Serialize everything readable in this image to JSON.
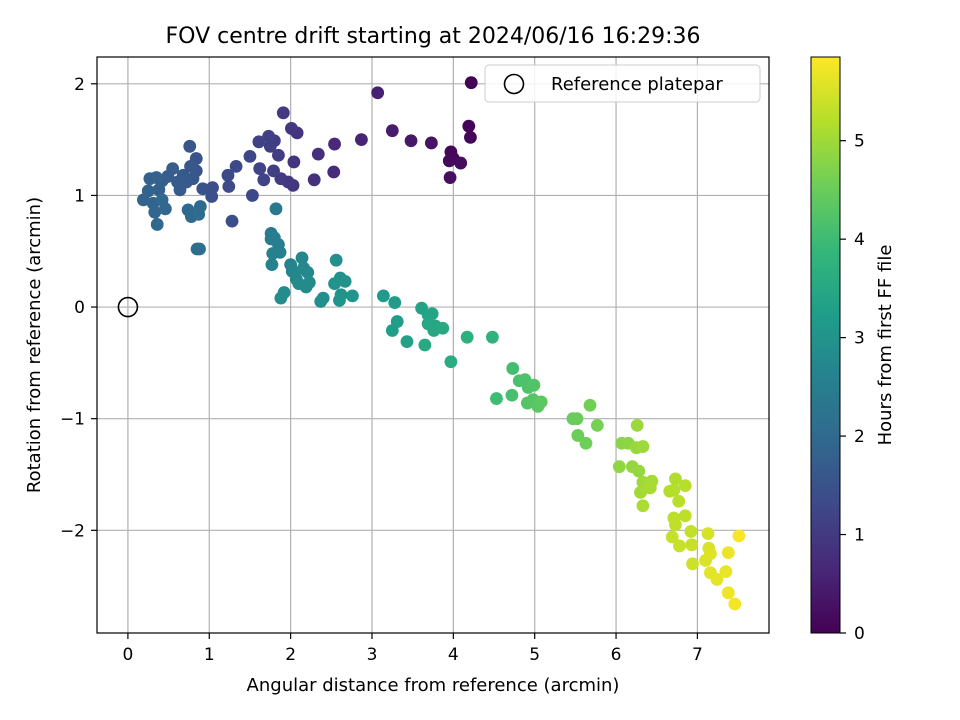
{
  "chart_data": {
    "type": "scatter",
    "title": "FOV centre drift starting at 2024/06/16 16:29:36",
    "xlabel": "Angular distance from reference (arcmin)",
    "ylabel": "Rotation from reference (arcmin)",
    "xlim": [
      -0.38,
      7.88
    ],
    "ylim": [
      -2.92,
      2.24
    ],
    "xticks": [
      0,
      1,
      2,
      3,
      4,
      5,
      6,
      7
    ],
    "xtick_labels": [
      "0",
      "1",
      "2",
      "3",
      "4",
      "5",
      "6",
      "7"
    ],
    "yticks": [
      -2,
      -1,
      0,
      1,
      2
    ],
    "ytick_labels": [
      "−2",
      "−1",
      "0",
      "1",
      "2"
    ],
    "grid": true,
    "legend": {
      "placement": "top-right",
      "label": "Reference platepar"
    },
    "reference_point": {
      "x": 0,
      "y": 0
    },
    "colorbar": {
      "label": "Hours from first FF file",
      "colormap": "viridis",
      "range": [
        0,
        5.85
      ],
      "ticks": [
        0,
        1,
        2,
        3,
        4,
        5
      ],
      "tick_labels": [
        "0",
        "1",
        "2",
        "3",
        "4",
        "5"
      ],
      "stops": [
        "#440154",
        "#482878",
        "#3e4989",
        "#31688e",
        "#26828e",
        "#1f9e89",
        "#35b779",
        "#6ece58",
        "#b5de2b",
        "#fde725"
      ]
    },
    "points": [
      {
        "x": 4.22,
        "y": 2.01,
        "t": 0.02
      },
      {
        "x": 4.19,
        "y": 1.62,
        "t": 0.05
      },
      {
        "x": 4.21,
        "y": 1.52,
        "t": 0.08
      },
      {
        "x": 3.97,
        "y": 1.39,
        "t": 0.1
      },
      {
        "x": 4.0,
        "y": 1.33,
        "t": 0.12
      },
      {
        "x": 3.95,
        "y": 1.31,
        "t": 0.15
      },
      {
        "x": 4.09,
        "y": 1.29,
        "t": 0.18
      },
      {
        "x": 3.96,
        "y": 1.16,
        "t": 0.22
      },
      {
        "x": 3.73,
        "y": 1.47,
        "t": 0.3
      },
      {
        "x": 3.48,
        "y": 1.49,
        "t": 0.38
      },
      {
        "x": 3.25,
        "y": 1.58,
        "t": 0.45
      },
      {
        "x": 3.07,
        "y": 1.92,
        "t": 0.52
      },
      {
        "x": 2.87,
        "y": 1.5,
        "t": 0.58
      },
      {
        "x": 2.54,
        "y": 1.46,
        "t": 0.68
      },
      {
        "x": 2.53,
        "y": 1.21,
        "t": 0.72
      },
      {
        "x": 2.34,
        "y": 1.37,
        "t": 0.78
      },
      {
        "x": 2.29,
        "y": 1.14,
        "t": 0.82
      },
      {
        "x": 2.08,
        "y": 1.56,
        "t": 0.88
      },
      {
        "x": 2.04,
        "y": 1.3,
        "t": 0.9
      },
      {
        "x": 2.03,
        "y": 1.09,
        "t": 0.92
      },
      {
        "x": 2.01,
        "y": 1.6,
        "t": 0.95
      },
      {
        "x": 1.97,
        "y": 1.12,
        "t": 0.97
      },
      {
        "x": 1.91,
        "y": 1.74,
        "t": 1.0
      },
      {
        "x": 1.88,
        "y": 1.15,
        "t": 1.02
      },
      {
        "x": 1.85,
        "y": 1.36,
        "t": 1.05
      },
      {
        "x": 1.8,
        "y": 1.49,
        "t": 1.07
      },
      {
        "x": 1.79,
        "y": 1.22,
        "t": 1.09
      },
      {
        "x": 1.75,
        "y": 1.44,
        "t": 1.11
      },
      {
        "x": 1.73,
        "y": 1.53,
        "t": 1.13
      },
      {
        "x": 1.61,
        "y": 1.48,
        "t": 1.16
      },
      {
        "x": 1.62,
        "y": 1.24,
        "t": 1.18
      },
      {
        "x": 1.67,
        "y": 1.14,
        "t": 1.2
      },
      {
        "x": 1.5,
        "y": 1.35,
        "t": 1.24
      },
      {
        "x": 1.53,
        "y": 1.0,
        "t": 1.27
      },
      {
        "x": 1.33,
        "y": 1.26,
        "t": 1.3
      },
      {
        "x": 1.23,
        "y": 1.18,
        "t": 1.33
      },
      {
        "x": 1.24,
        "y": 1.08,
        "t": 1.36
      },
      {
        "x": 1.28,
        "y": 0.77,
        "t": 1.39
      },
      {
        "x": 1.04,
        "y": 1.07,
        "t": 1.42
      },
      {
        "x": 1.03,
        "y": 0.99,
        "t": 1.45
      },
      {
        "x": 0.92,
        "y": 1.06,
        "t": 1.48
      },
      {
        "x": 0.84,
        "y": 1.33,
        "t": 1.51
      },
      {
        "x": 0.84,
        "y": 1.22,
        "t": 1.54
      },
      {
        "x": 0.76,
        "y": 1.44,
        "t": 1.57
      },
      {
        "x": 0.77,
        "y": 1.26,
        "t": 1.6
      },
      {
        "x": 0.8,
        "y": 1.15,
        "t": 1.62
      },
      {
        "x": 0.72,
        "y": 1.12,
        "t": 1.64
      },
      {
        "x": 0.68,
        "y": 1.18,
        "t": 1.66
      },
      {
        "x": 0.64,
        "y": 1.05,
        "t": 1.68
      },
      {
        "x": 0.61,
        "y": 1.12,
        "t": 1.7
      },
      {
        "x": 0.55,
        "y": 1.24,
        "t": 1.72
      },
      {
        "x": 0.49,
        "y": 1.17,
        "t": 1.74
      },
      {
        "x": 0.42,
        "y": 1.13,
        "t": 1.76
      },
      {
        "x": 0.38,
        "y": 1.05,
        "t": 1.78
      },
      {
        "x": 0.35,
        "y": 1.16,
        "t": 1.8
      },
      {
        "x": 0.27,
        "y": 1.15,
        "t": 1.82
      },
      {
        "x": 0.25,
        "y": 1.04,
        "t": 1.84
      },
      {
        "x": 0.19,
        "y": 0.96,
        "t": 1.86
      },
      {
        "x": 0.31,
        "y": 0.93,
        "t": 1.88
      },
      {
        "x": 0.33,
        "y": 0.85,
        "t": 1.9
      },
      {
        "x": 0.46,
        "y": 0.88,
        "t": 1.92
      },
      {
        "x": 0.36,
        "y": 0.74,
        "t": 1.94
      },
      {
        "x": 0.42,
        "y": 0.96,
        "t": 1.96
      },
      {
        "x": 0.74,
        "y": 0.87,
        "t": 1.98
      },
      {
        "x": 0.78,
        "y": 0.81,
        "t": 2.0
      },
      {
        "x": 0.89,
        "y": 0.9,
        "t": 2.02
      },
      {
        "x": 0.87,
        "y": 0.83,
        "t": 2.04
      },
      {
        "x": 0.85,
        "y": 0.52,
        "t": 2.06
      },
      {
        "x": 0.88,
        "y": 0.52,
        "t": 2.1
      },
      {
        "x": 1.82,
        "y": 0.88,
        "t": 2.35
      },
      {
        "x": 1.76,
        "y": 0.66,
        "t": 2.4
      },
      {
        "x": 1.76,
        "y": 0.61,
        "t": 2.45
      },
      {
        "x": 1.8,
        "y": 0.62,
        "t": 2.48
      },
      {
        "x": 1.85,
        "y": 0.56,
        "t": 2.5
      },
      {
        "x": 1.87,
        "y": 0.49,
        "t": 2.53
      },
      {
        "x": 1.78,
        "y": 0.48,
        "t": 2.55
      },
      {
        "x": 1.77,
        "y": 0.38,
        "t": 2.58
      },
      {
        "x": 2.0,
        "y": 0.38,
        "t": 2.62
      },
      {
        "x": 2.02,
        "y": 0.32,
        "t": 2.65
      },
      {
        "x": 2.07,
        "y": 0.25,
        "t": 2.68
      },
      {
        "x": 2.06,
        "y": 0.31,
        "t": 2.7
      },
      {
        "x": 2.14,
        "y": 0.44,
        "t": 2.72
      },
      {
        "x": 2.16,
        "y": 0.35,
        "t": 2.74
      },
      {
        "x": 2.21,
        "y": 0.31,
        "t": 2.76
      },
      {
        "x": 2.23,
        "y": 0.22,
        "t": 2.78
      },
      {
        "x": 2.19,
        "y": 0.18,
        "t": 2.8
      },
      {
        "x": 2.1,
        "y": 0.21,
        "t": 2.82
      },
      {
        "x": 1.92,
        "y": 0.13,
        "t": 2.84
      },
      {
        "x": 1.88,
        "y": 0.08,
        "t": 2.86
      },
      {
        "x": 2.4,
        "y": 0.08,
        "t": 2.88
      },
      {
        "x": 2.37,
        "y": 0.05,
        "t": 2.9
      },
      {
        "x": 2.56,
        "y": 0.42,
        "t": 2.92
      },
      {
        "x": 2.61,
        "y": 0.26,
        "t": 2.94
      },
      {
        "x": 2.67,
        "y": 0.23,
        "t": 2.96
      },
      {
        "x": 2.54,
        "y": 0.21,
        "t": 2.98
      },
      {
        "x": 2.62,
        "y": 0.11,
        "t": 3.0
      },
      {
        "x": 2.6,
        "y": 0.06,
        "t": 3.02
      },
      {
        "x": 2.76,
        "y": 0.1,
        "t": 3.05
      },
      {
        "x": 3.14,
        "y": 0.1,
        "t": 3.15
      },
      {
        "x": 3.28,
        "y": 0.04,
        "t": 3.2
      },
      {
        "x": 3.31,
        "y": -0.13,
        "t": 3.25
      },
      {
        "x": 3.25,
        "y": -0.21,
        "t": 3.28
      },
      {
        "x": 3.43,
        "y": -0.31,
        "t": 3.33
      },
      {
        "x": 3.61,
        "y": -0.01,
        "t": 3.38
      },
      {
        "x": 3.69,
        "y": -0.07,
        "t": 3.41
      },
      {
        "x": 3.74,
        "y": -0.06,
        "t": 3.43
      },
      {
        "x": 3.69,
        "y": -0.15,
        "t": 3.45
      },
      {
        "x": 3.78,
        "y": -0.17,
        "t": 3.47
      },
      {
        "x": 3.76,
        "y": -0.21,
        "t": 3.49
      },
      {
        "x": 3.87,
        "y": -0.19,
        "t": 3.51
      },
      {
        "x": 3.65,
        "y": -0.34,
        "t": 3.53
      },
      {
        "x": 3.97,
        "y": -0.49,
        "t": 3.6
      },
      {
        "x": 4.17,
        "y": -0.27,
        "t": 3.68
      },
      {
        "x": 4.48,
        "y": -0.27,
        "t": 3.78
      },
      {
        "x": 4.53,
        "y": -0.82,
        "t": 4.0
      },
      {
        "x": 4.73,
        "y": -0.55,
        "t": 4.08
      },
      {
        "x": 4.72,
        "y": -0.79,
        "t": 4.12
      },
      {
        "x": 4.81,
        "y": -0.66,
        "t": 4.15
      },
      {
        "x": 4.88,
        "y": -0.65,
        "t": 4.18
      },
      {
        "x": 4.92,
        "y": -0.72,
        "t": 4.21
      },
      {
        "x": 4.99,
        "y": -0.7,
        "t": 4.24
      },
      {
        "x": 4.91,
        "y": -0.86,
        "t": 4.27
      },
      {
        "x": 4.98,
        "y": -0.83,
        "t": 4.3
      },
      {
        "x": 5.04,
        "y": -0.89,
        "t": 4.33
      },
      {
        "x": 5.08,
        "y": -0.85,
        "t": 4.36
      },
      {
        "x": 5.47,
        "y": -1.0,
        "t": 4.48
      },
      {
        "x": 5.52,
        "y": -1.0,
        "t": 4.5
      },
      {
        "x": 5.53,
        "y": -1.15,
        "t": 4.53
      },
      {
        "x": 5.63,
        "y": -1.22,
        "t": 4.56
      },
      {
        "x": 5.68,
        "y": -0.88,
        "t": 4.59
      },
      {
        "x": 5.77,
        "y": -1.06,
        "t": 4.62
      },
      {
        "x": 6.07,
        "y": -1.22,
        "t": 4.8
      },
      {
        "x": 6.15,
        "y": -1.22,
        "t": 4.83
      },
      {
        "x": 6.04,
        "y": -1.43,
        "t": 4.86
      },
      {
        "x": 6.2,
        "y": -1.43,
        "t": 4.89
      },
      {
        "x": 6.28,
        "y": -1.47,
        "t": 4.92
      },
      {
        "x": 6.25,
        "y": -1.26,
        "t": 4.94
      },
      {
        "x": 6.26,
        "y": -1.06,
        "t": 4.96
      },
      {
        "x": 6.33,
        "y": -1.25,
        "t": 4.98
      },
      {
        "x": 6.33,
        "y": -1.57,
        "t": 5.0
      },
      {
        "x": 6.3,
        "y": -1.66,
        "t": 5.02
      },
      {
        "x": 6.36,
        "y": -1.62,
        "t": 5.04
      },
      {
        "x": 6.44,
        "y": -1.56,
        "t": 5.06
      },
      {
        "x": 6.42,
        "y": -1.62,
        "t": 5.08
      },
      {
        "x": 6.33,
        "y": -1.78,
        "t": 5.1
      },
      {
        "x": 6.73,
        "y": -1.54,
        "t": 5.16
      },
      {
        "x": 6.71,
        "y": -1.64,
        "t": 5.18
      },
      {
        "x": 6.66,
        "y": -1.65,
        "t": 5.2
      },
      {
        "x": 6.85,
        "y": -1.6,
        "t": 5.22
      },
      {
        "x": 6.77,
        "y": -1.74,
        "t": 5.24
      },
      {
        "x": 6.71,
        "y": -1.89,
        "t": 5.26
      },
      {
        "x": 6.85,
        "y": -1.87,
        "t": 5.28
      },
      {
        "x": 6.73,
        "y": -1.95,
        "t": 5.3
      },
      {
        "x": 6.92,
        "y": -2.01,
        "t": 5.32
      },
      {
        "x": 6.69,
        "y": -2.06,
        "t": 5.34
      },
      {
        "x": 6.78,
        "y": -2.14,
        "t": 5.36
      },
      {
        "x": 6.93,
        "y": -2.13,
        "t": 5.38
      },
      {
        "x": 6.94,
        "y": -2.3,
        "t": 5.42
      },
      {
        "x": 7.13,
        "y": -2.03,
        "t": 5.48
      },
      {
        "x": 7.14,
        "y": -2.16,
        "t": 5.51
      },
      {
        "x": 7.1,
        "y": -2.27,
        "t": 5.54
      },
      {
        "x": 7.16,
        "y": -2.21,
        "t": 5.57
      },
      {
        "x": 7.16,
        "y": -2.38,
        "t": 5.6
      },
      {
        "x": 7.24,
        "y": -2.44,
        "t": 5.63
      },
      {
        "x": 7.35,
        "y": -2.37,
        "t": 5.66
      },
      {
        "x": 7.38,
        "y": -2.2,
        "t": 5.69
      },
      {
        "x": 7.38,
        "y": -2.56,
        "t": 5.73
      },
      {
        "x": 7.46,
        "y": -2.66,
        "t": 5.77
      },
      {
        "x": 7.51,
        "y": -2.05,
        "t": 5.8
      }
    ]
  }
}
